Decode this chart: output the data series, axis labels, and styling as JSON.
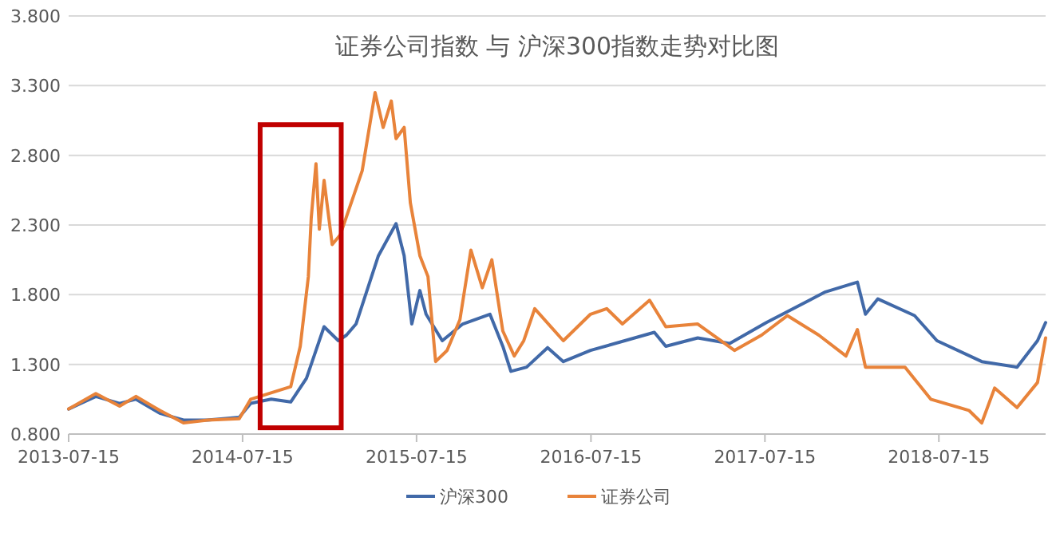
{
  "chart_data": {
    "type": "line",
    "title": "证券公司指数 与 沪深300指数走势对比图",
    "xlim": [
      "2013-07-15",
      "2019-02-24"
    ],
    "xticks": [
      "2013-07-15",
      "2014-07-15",
      "2015-07-15",
      "2016-07-15",
      "2017-07-15",
      "2018-07-15"
    ],
    "ylim": [
      0.8,
      3.8
    ],
    "yticks": [
      {
        "value": 0.8,
        "label": "0.800"
      },
      {
        "value": 1.3,
        "label": "1.300"
      },
      {
        "value": 1.8,
        "label": "1.800"
      },
      {
        "value": 2.3,
        "label": "2.300"
      },
      {
        "value": 2.8,
        "label": "2.800"
      },
      {
        "value": 3.3,
        "label": "3.300"
      },
      {
        "value": 3.8,
        "label": "3.800"
      }
    ],
    "grid": "y",
    "legend": "bottom",
    "marker": "none",
    "line_style": "solid",
    "series": [
      {
        "name": "沪深300",
        "color": "#4169a8",
        "x": [
          "2013-07-15",
          "2013-09-10",
          "2013-10-30",
          "2013-12-03",
          "2014-01-22",
          "2014-03-13",
          "2014-05-02",
          "2014-07-08",
          "2014-08-01",
          "2014-09-13",
          "2014-10-24",
          "2014-11-26",
          "2014-12-23",
          "2015-01-02",
          "2015-02-01",
          "2015-02-18",
          "2015-03-10",
          "2015-04-26",
          "2015-06-02",
          "2015-06-19",
          "2015-07-05",
          "2015-07-22",
          "2015-08-04",
          "2015-09-07",
          "2015-10-20",
          "2015-12-16",
          "2016-01-12",
          "2016-01-29",
          "2016-03-02",
          "2016-04-15",
          "2016-05-18",
          "2016-07-14",
          "2016-11-25",
          "2016-12-19",
          "2017-02-24",
          "2017-05-02",
          "2017-07-18",
          "2017-11-19",
          "2018-01-25",
          "2018-02-11",
          "2018-03-09",
          "2018-05-25",
          "2018-07-11",
          "2018-10-13",
          "2018-12-26",
          "2019-02-07",
          "2019-02-24"
        ],
        "values": [
          0.98,
          1.07,
          1.02,
          1.05,
          0.95,
          0.9,
          0.9,
          0.92,
          1.02,
          1.05,
          1.03,
          1.2,
          1.47,
          1.57,
          1.47,
          1.51,
          1.59,
          2.08,
          2.31,
          2.08,
          1.59,
          1.83,
          1.66,
          1.47,
          1.59,
          1.66,
          1.43,
          1.25,
          1.28,
          1.42,
          1.32,
          1.4,
          1.53,
          1.43,
          1.49,
          1.45,
          1.6,
          1.82,
          1.89,
          1.66,
          1.77,
          1.65,
          1.47,
          1.32,
          1.28,
          1.47,
          1.6
        ]
      },
      {
        "name": "证券公司",
        "color": "#e8833a",
        "x": [
          "2013-07-15",
          "2013-09-10",
          "2013-10-30",
          "2013-12-03",
          "2014-01-22",
          "2014-03-13",
          "2014-05-02",
          "2014-07-08",
          "2014-08-01",
          "2014-10-24",
          "2014-11-13",
          "2014-11-30",
          "2014-12-06",
          "2014-12-16",
          "2014-12-23",
          "2015-01-02",
          "2015-01-19",
          "2015-02-05",
          "2015-02-28",
          "2015-03-23",
          "2015-04-19",
          "2015-05-06",
          "2015-05-23",
          "2015-06-02",
          "2015-06-19",
          "2015-07-02",
          "2015-07-22",
          "2015-08-08",
          "2015-08-24",
          "2015-09-17",
          "2015-10-14",
          "2015-11-06",
          "2015-11-30",
          "2015-12-20",
          "2016-01-12",
          "2016-02-05",
          "2016-02-25",
          "2016-03-19",
          "2016-05-18",
          "2016-07-14",
          "2016-08-17",
          "2016-09-19",
          "2016-11-15",
          "2016-12-19",
          "2017-02-24",
          "2017-05-12",
          "2017-07-08",
          "2017-08-31",
          "2017-11-05",
          "2018-01-01",
          "2018-01-25",
          "2018-02-11",
          "2018-05-05",
          "2018-06-28",
          "2018-09-16",
          "2018-10-13",
          "2018-11-09",
          "2018-12-26",
          "2019-02-07",
          "2019-02-24"
        ],
        "values": [
          0.98,
          1.09,
          1.0,
          1.07,
          0.97,
          0.88,
          0.9,
          0.91,
          1.05,
          1.14,
          1.43,
          1.93,
          2.35,
          2.74,
          2.27,
          2.62,
          2.16,
          2.23,
          2.46,
          2.69,
          3.25,
          3.0,
          3.19,
          2.92,
          3.0,
          2.46,
          2.08,
          1.93,
          1.32,
          1.4,
          1.62,
          2.12,
          1.85,
          2.05,
          1.54,
          1.36,
          1.47,
          1.7,
          1.47,
          1.66,
          1.7,
          1.59,
          1.76,
          1.57,
          1.59,
          1.4,
          1.51,
          1.65,
          1.51,
          1.36,
          1.55,
          1.28,
          1.28,
          1.05,
          0.97,
          0.88,
          1.13,
          0.99,
          1.17,
          1.49
        ]
      }
    ]
  }
}
